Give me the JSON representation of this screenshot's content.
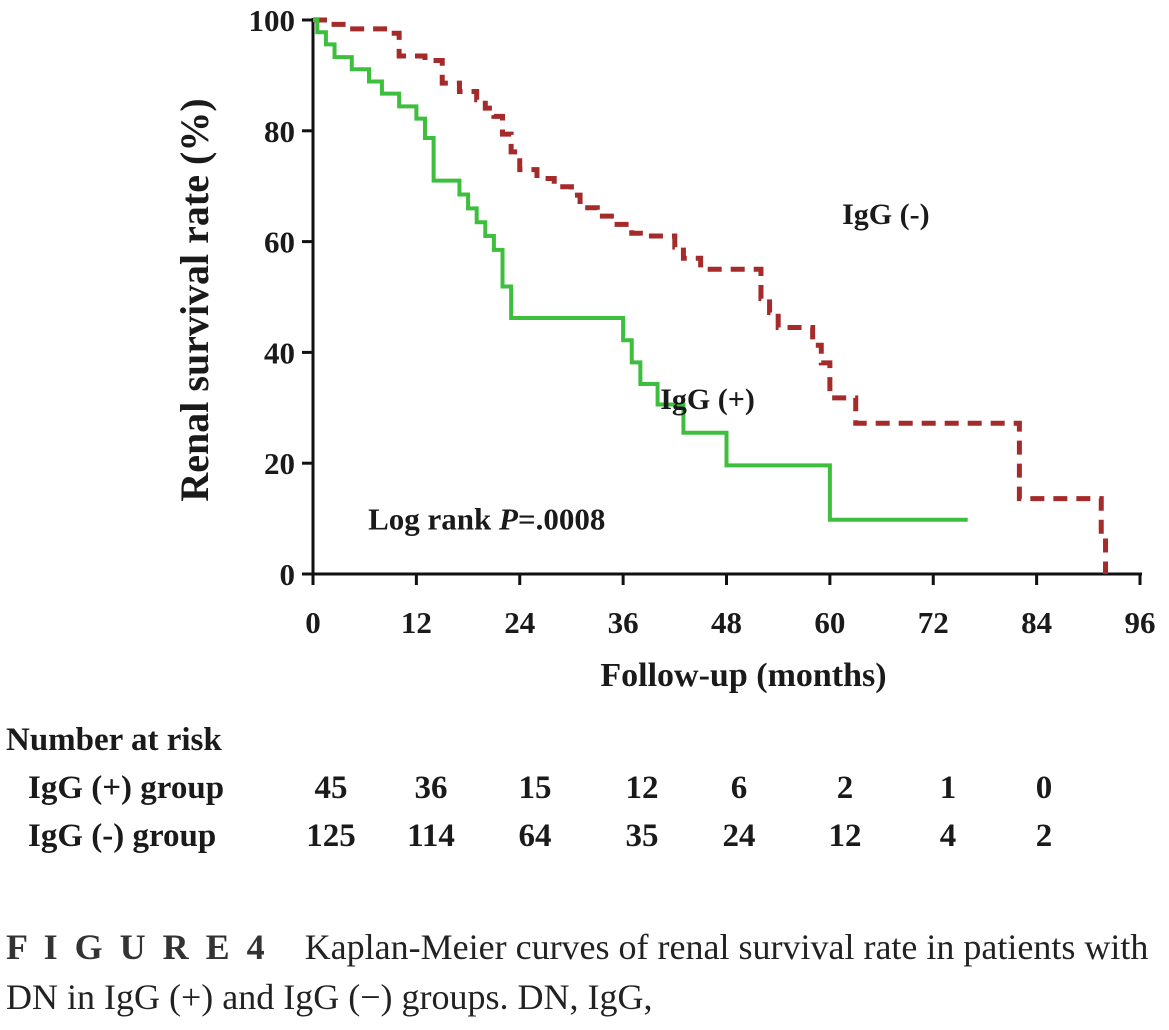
{
  "chart_data": {
    "type": "line",
    "step": true,
    "xlabel": "Follow-up  (months)",
    "ylabel": "Renal survival rate (%)",
    "xlim": [
      0,
      96
    ],
    "ylim": [
      0,
      100
    ],
    "xticks": [
      0,
      12,
      24,
      36,
      48,
      60,
      72,
      84,
      96
    ],
    "yticks": [
      0,
      20,
      40,
      60,
      80,
      100
    ],
    "grid": false,
    "annotation_prefix": "Log rank ",
    "annotation_p": "P",
    "annotation_suffix": "=.0008",
    "series": [
      {
        "name": "IgG (-)",
        "color": "#a52a2a",
        "dashed": true,
        "x": [
          0,
          2,
          4,
          9,
          10,
          13,
          15,
          17,
          19,
          20,
          21,
          22,
          23,
          24,
          26,
          28,
          30,
          31,
          33,
          35,
          37,
          38,
          42,
          43,
          45,
          51,
          52,
          53,
          54,
          57,
          58,
          59,
          60,
          61,
          63,
          64,
          75,
          82,
          91,
          91.5,
          92
        ],
        "y": [
          100,
          99.2,
          98.4,
          97.6,
          93.5,
          92.7,
          88.6,
          87.1,
          85.6,
          84.1,
          82.6,
          79.4,
          76.2,
          73.0,
          71.4,
          69.9,
          68.4,
          66.1,
          64.6,
          63.1,
          61.5,
          61.0,
          59.0,
          57.0,
          55.0,
          55.0,
          49.7,
          47.2,
          44.5,
          44.5,
          41.3,
          38.1,
          31.8,
          31.8,
          27.2,
          27.2,
          27.2,
          13.6,
          13.6,
          6.8,
          0
        ]
      },
      {
        "name": "IgG (+)",
        "color": "#3dbf3d",
        "dashed": false,
        "x": [
          0,
          0.5,
          1.5,
          2.5,
          4.5,
          6.5,
          8,
          10,
          12,
          13,
          14,
          17,
          18,
          19,
          20,
          21,
          22,
          23,
          36,
          37,
          38,
          40,
          43,
          48,
          53,
          60,
          76
        ],
        "y": [
          100,
          97.8,
          95.6,
          93.3,
          91.1,
          88.9,
          86.7,
          84.4,
          82.2,
          78.7,
          71.0,
          68.5,
          66.0,
          63.5,
          61.0,
          58.5,
          51.9,
          46.2,
          42.2,
          38.2,
          34.3,
          30.6,
          25.5,
          19.6,
          19.6,
          9.8,
          9.8
        ]
      }
    ]
  },
  "risk_table": {
    "title": "Number at risk",
    "rows": [
      {
        "label": "IgG (+) group",
        "values": [
          "45",
          "36",
          "15",
          "12",
          "6",
          "2",
          "1",
          "0"
        ]
      },
      {
        "label": "IgG (-) group",
        "values": [
          "125",
          "114",
          "64",
          "35",
          "24",
          "12",
          "4",
          "2"
        ]
      }
    ]
  },
  "caption": {
    "figure_label": "F I G U R E 4",
    "text": "Kaplan-Meier curves of renal survival rate in patients with DN in IgG (+) and IgG (−) groups. DN, IgG,"
  }
}
